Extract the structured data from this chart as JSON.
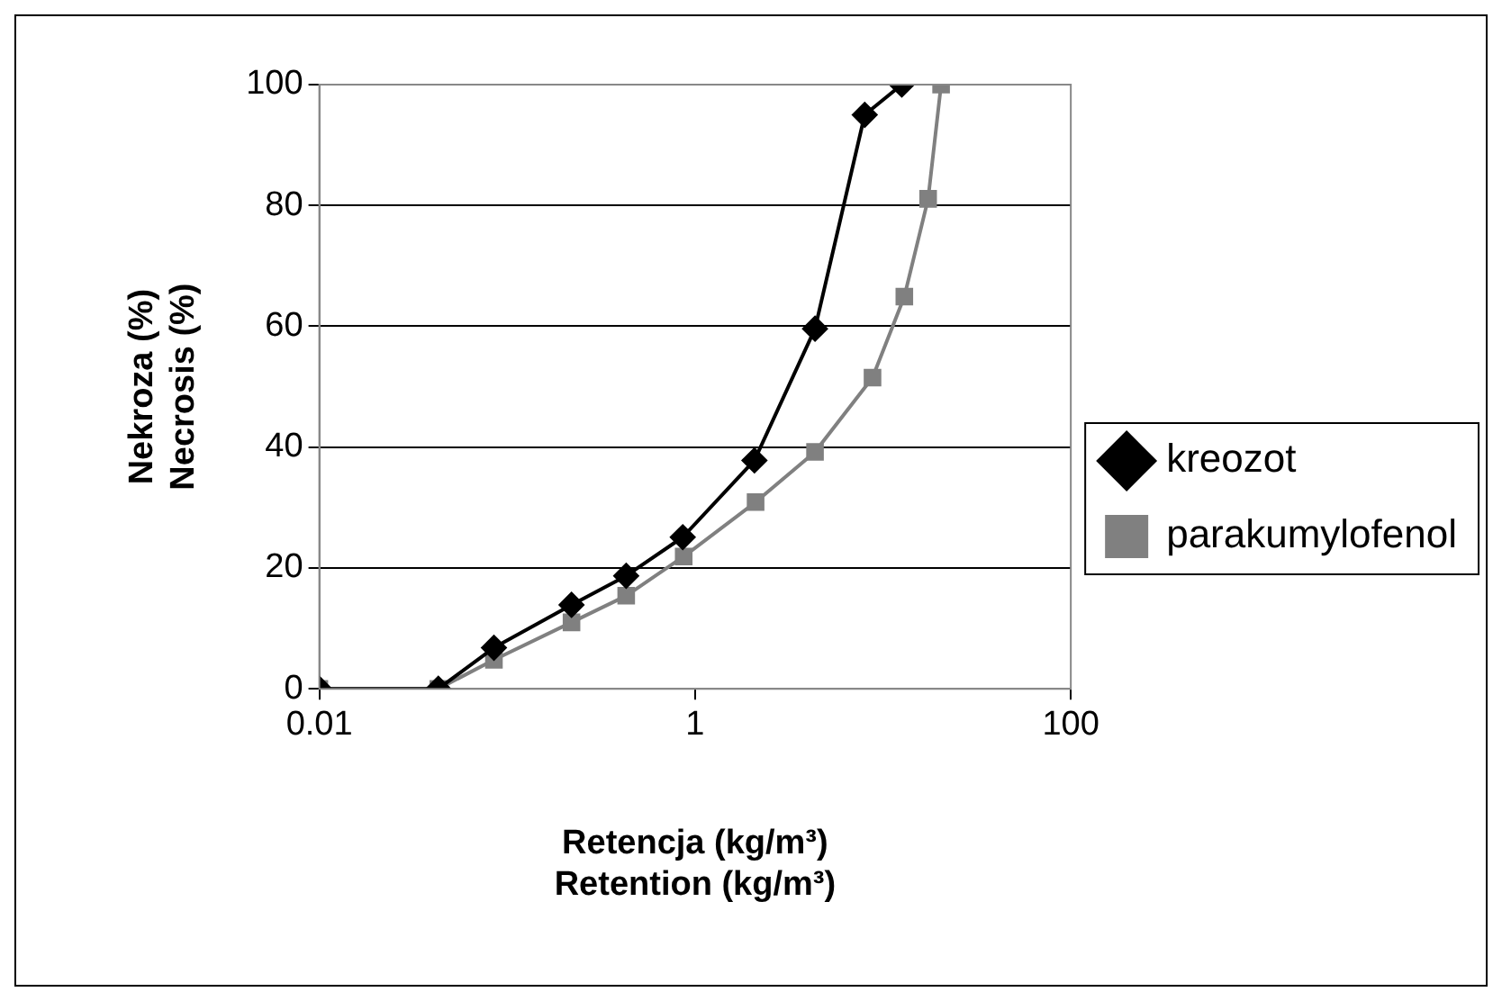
{
  "chart_data": {
    "type": "line",
    "xlabel": "Retencja (kg/m³)\nRetention (kg/m³)",
    "ylabel": "Nekroza (%)\nNecrosis (%)",
    "log": "x",
    "xlim": [
      0.01,
      100
    ],
    "xticks": [
      0.01,
      1,
      100
    ],
    "ylim": [
      0,
      100
    ],
    "yticks": [
      0,
      20,
      40,
      60,
      80,
      100
    ],
    "grid": "y",
    "legend": "right",
    "series": [
      {
        "name": "kreozot",
        "color": "#000000",
        "marker": "diamond",
        "x": [
          0.01,
          0.043,
          0.085,
          0.22,
          0.43,
          0.86,
          2.07,
          4.35,
          8.0,
          12.6
        ],
        "values": [
          0,
          0,
          6.8,
          13.9,
          18.7,
          25.1,
          37.8,
          59.6,
          95,
          100
        ]
      },
      {
        "name": "parakumylofenol",
        "color": "#808080",
        "marker": "square",
        "x": [
          0.01,
          0.043,
          0.085,
          0.22,
          0.43,
          0.87,
          2.1,
          4.35,
          8.8,
          13,
          17.4,
          20.4
        ],
        "values": [
          0,
          0,
          4.8,
          11,
          15.4,
          21.9,
          30.9,
          39.2,
          51.5,
          64.9,
          81.1,
          100
        ]
      }
    ]
  }
}
